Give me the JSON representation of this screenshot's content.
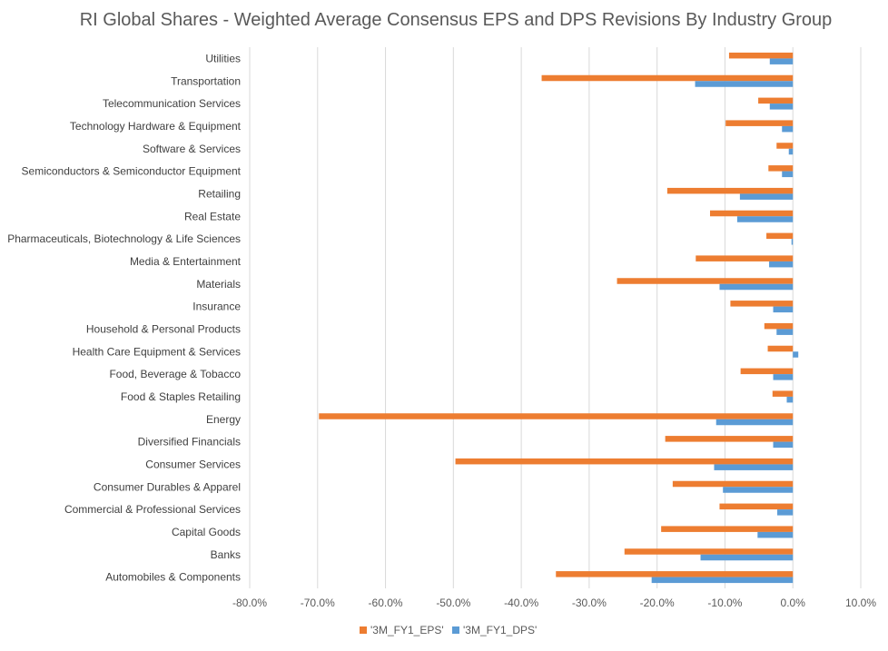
{
  "chart_data": {
    "type": "bar",
    "orientation": "horizontal",
    "title": "RI Global Shares - Weighted Average Consensus EPS and DPS Revisions By Industry Group",
    "xlabel": "",
    "ylabel": "",
    "xlim": [
      -0.8,
      0.1
    ],
    "x_ticks": [
      -0.8,
      -0.7,
      -0.6,
      -0.5,
      -0.4,
      -0.3,
      -0.2,
      -0.1,
      0.0,
      0.1
    ],
    "x_tick_labels": [
      "-80.0%",
      "-70.0%",
      "-60.0%",
      "-50.0%",
      "-40.0%",
      "-30.0%",
      "-20.0%",
      "-10.0%",
      "0.0%",
      "10.0%"
    ],
    "grid": "vertical",
    "legend_position": "bottom",
    "categories": [
      "Utilities",
      "Transportation",
      "Telecommunication Services",
      "Technology Hardware & Equipment",
      "Software & Services",
      "Semiconductors & Semiconductor Equipment",
      "Retailing",
      "Real Estate",
      "Pharmaceuticals, Biotechnology & Life Sciences",
      "Media & Entertainment",
      "Materials",
      "Insurance",
      "Household & Personal Products",
      "Health Care Equipment & Services",
      "Food, Beverage & Tobacco",
      "Food & Staples Retailing",
      "Energy",
      "Diversified Financials",
      "Consumer Services",
      "Consumer Durables & Apparel",
      "Commercial & Professional Services",
      "Capital Goods",
      "Banks",
      "Automobiles & Components"
    ],
    "series": [
      {
        "name": "'3M_FY1_EPS'",
        "color": "#ED7D31",
        "values": [
          -0.094,
          -0.37,
          -0.051,
          -0.099,
          -0.024,
          -0.036,
          -0.185,
          -0.122,
          -0.039,
          -0.143,
          -0.259,
          -0.092,
          -0.042,
          -0.037,
          -0.077,
          -0.03,
          -0.698,
          -0.188,
          -0.497,
          -0.177,
          -0.108,
          -0.194,
          -0.248,
          -0.349
        ]
      },
      {
        "name": "'3M_FY1_DPS'",
        "color": "#5B9BD5",
        "values": [
          -0.034,
          -0.144,
          -0.034,
          -0.016,
          -0.006,
          -0.016,
          -0.078,
          -0.082,
          -0.002,
          -0.035,
          -0.108,
          -0.029,
          -0.024,
          0.008,
          -0.029,
          -0.009,
          -0.113,
          -0.029,
          -0.116,
          -0.103,
          -0.023,
          -0.052,
          -0.136,
          -0.208
        ]
      }
    ]
  }
}
